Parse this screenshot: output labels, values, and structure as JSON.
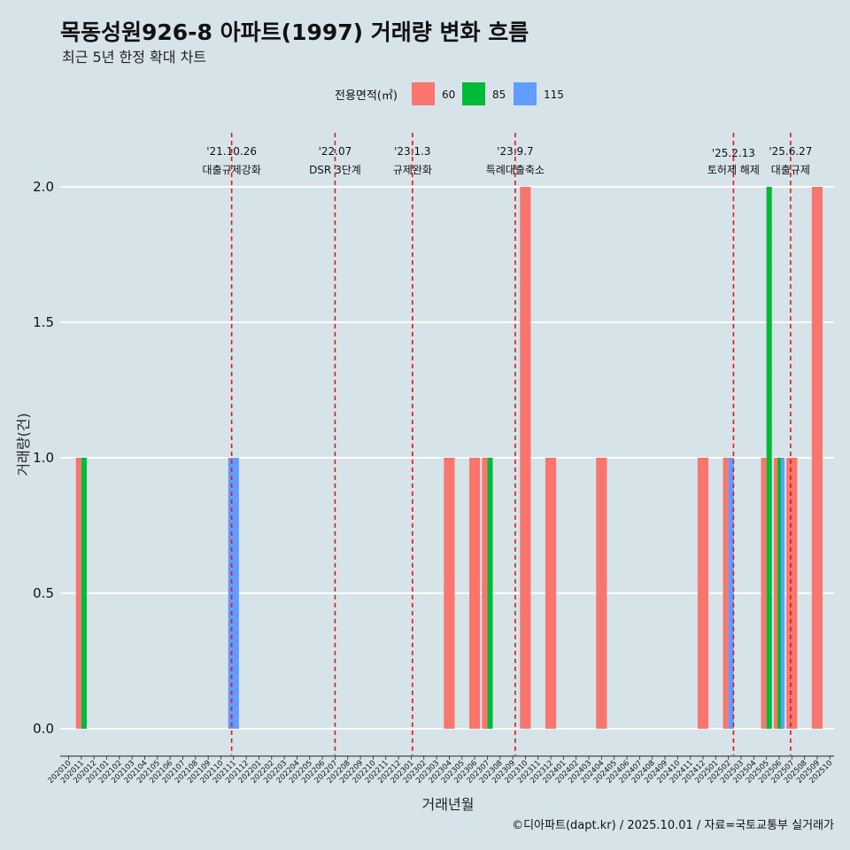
{
  "chart_data": {
    "type": "bar",
    "title": "목동성원926-8 아파트(1997) 거래량 변화 흐름",
    "subtitle": "최근 5년 한정 확대 차트",
    "xlabel": "거래년월",
    "ylabel": "거래량(건)",
    "ylim": [
      0,
      2
    ],
    "yticks": [
      "0.0",
      "0.5",
      "1.0",
      "1.5",
      "2.0"
    ],
    "grid": "horizontal",
    "legend": {
      "title": "전용면적(㎡)",
      "placement": "top"
    },
    "categories": [
      "202010",
      "202011",
      "202012",
      "202101",
      "202102",
      "202103",
      "202104",
      "202105",
      "202106",
      "202107",
      "202108",
      "202109",
      "202110",
      "202111",
      "202112",
      "202201",
      "202202",
      "202203",
      "202204",
      "202205",
      "202206",
      "202207",
      "202208",
      "202209",
      "202210",
      "202211",
      "202212",
      "202301",
      "202302",
      "202303",
      "202304",
      "202305",
      "202306",
      "202307",
      "202308",
      "202309",
      "202310",
      "202311",
      "202312",
      "202401",
      "202402",
      "202403",
      "202404",
      "202405",
      "202406",
      "202407",
      "202408",
      "202409",
      "202410",
      "202411",
      "202412",
      "202501",
      "202502",
      "202503",
      "202504",
      "202505",
      "202506",
      "202507",
      "202508",
      "202509",
      "202510"
    ],
    "series": [
      {
        "name": "60",
        "color": "#f8766d",
        "points": [
          [
            "202011",
            1
          ],
          [
            "202304",
            1
          ],
          [
            "202306",
            1
          ],
          [
            "202307",
            1
          ],
          [
            "202310",
            2
          ],
          [
            "202312",
            1
          ],
          [
            "202404",
            1
          ],
          [
            "202412",
            1
          ],
          [
            "202502",
            1
          ],
          [
            "202505",
            1
          ],
          [
            "202506",
            1
          ],
          [
            "202507",
            1
          ],
          [
            "202509",
            2
          ]
        ]
      },
      {
        "name": "85",
        "color": "#00ba38",
        "points": [
          [
            "202011",
            1
          ],
          [
            "202307",
            1
          ],
          [
            "202505",
            2
          ],
          [
            "202506",
            1
          ]
        ]
      },
      {
        "name": "115",
        "color": "#619cff",
        "points": [
          [
            "202111",
            1
          ],
          [
            "202502",
            1
          ],
          [
            "202506",
            1
          ]
        ]
      }
    ],
    "events": [
      {
        "date": "'21.10.26",
        "label": "대출규제강화",
        "month": "202110",
        "offset": 0.85
      },
      {
        "date": "'22.07",
        "label": "DSR 3단계",
        "month": "202207",
        "offset": 0.0
      },
      {
        "date": "'23.1.3",
        "label": "규제완화",
        "month": "202301",
        "offset": 0.1
      },
      {
        "date": "'23.9.7",
        "label": "특례대출축소",
        "month": "202309",
        "offset": 0.2
      },
      {
        "date": "'25.2.13",
        "label": "토허제 해제",
        "month": "202502",
        "offset": 0.4
      },
      {
        "date": "'25.6.27",
        "label": "대출규제",
        "month": "202506",
        "offset": 0.9
      }
    ],
    "caption": "©디아파트(dapt.kr) / 2025.10.01 / 자료=국토교통부 실거래가"
  }
}
